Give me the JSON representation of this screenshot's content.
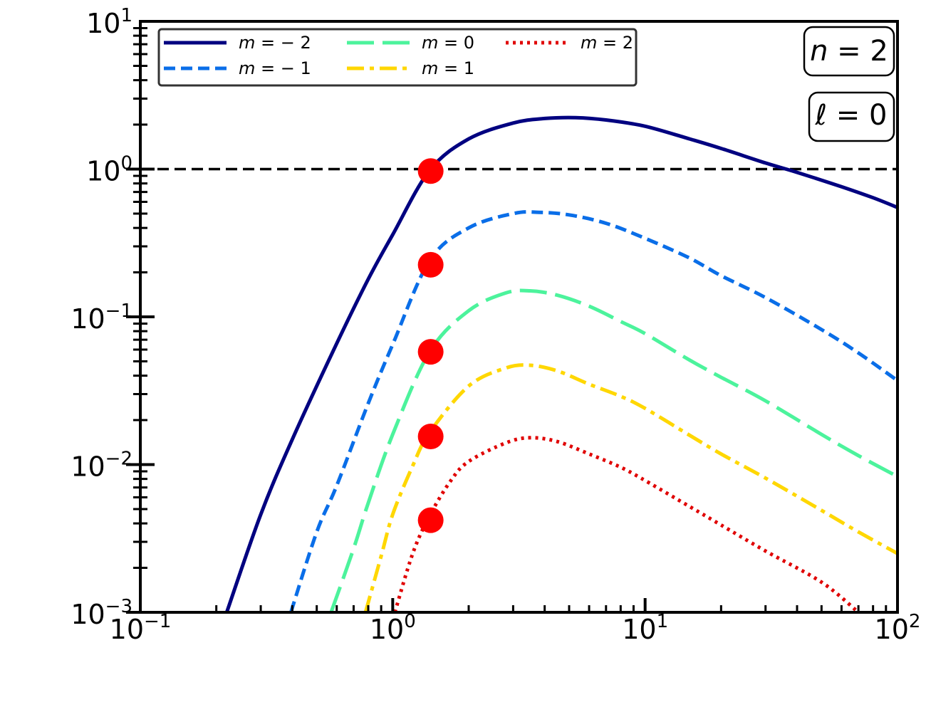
{
  "chart_data": {
    "type": "line",
    "title": "",
    "xlabel": "",
    "ylabel": "",
    "xscale": "log",
    "yscale": "log",
    "xlim": [
      0.1,
      100
    ],
    "ylim": [
      0.001,
      10
    ],
    "x_ticks": [
      {
        "base": "10",
        "exp": "−1"
      },
      {
        "base": "10",
        "exp": "0"
      },
      {
        "base": "10",
        "exp": "1"
      },
      {
        "base": "10",
        "exp": "2"
      }
    ],
    "y_ticks": [
      {
        "base": "10",
        "exp": "−3"
      },
      {
        "base": "10",
        "exp": "−2"
      },
      {
        "base": "10",
        "exp": "−1"
      },
      {
        "base": "10",
        "exp": "0"
      },
      {
        "base": "10",
        "exp": "1"
      }
    ],
    "grid": false,
    "legend_position": "top-left",
    "reference_line": {
      "y": 1.0,
      "style": "dashed",
      "color": "#000000"
    },
    "annotations": [
      {
        "var": "n",
        "op": " = ",
        "val": "2"
      },
      {
        "var": "ℓ",
        "op": " = ",
        "val": "0"
      }
    ],
    "series": [
      {
        "name": {
          "var": "m",
          "op": " = ",
          "val": "− 2"
        },
        "color": "#000080",
        "dash": "solid",
        "x": [
          0.22,
          0.3,
          0.4,
          0.6,
          0.8,
          1.0,
          1.4,
          2.0,
          3.0,
          4.0,
          5.3,
          7.0,
          10,
          15,
          20,
          30,
          40,
          60,
          80,
          100
        ],
        "y": [
          0.001,
          0.0046,
          0.0148,
          0.066,
          0.18,
          0.36,
          0.98,
          1.6,
          2.05,
          2.2,
          2.23,
          2.15,
          1.95,
          1.6,
          1.38,
          1.1,
          0.95,
          0.76,
          0.64,
          0.55
        ]
      },
      {
        "name": {
          "var": "m",
          "op": " = ",
          "val": "− 1"
        },
        "color": "#0a6ee8",
        "dash": "dashed",
        "x": [
          0.395,
          0.5,
          0.6,
          0.8,
          1.0,
          1.4,
          2.0,
          3.0,
          3.8,
          5.0,
          7.0,
          10,
          15,
          20,
          30,
          50,
          70,
          100
        ],
        "y": [
          0.001,
          0.0035,
          0.0072,
          0.026,
          0.065,
          0.24,
          0.4,
          0.5,
          0.51,
          0.49,
          0.43,
          0.34,
          0.25,
          0.19,
          0.135,
          0.082,
          0.057,
          0.037
        ]
      },
      {
        "name": {
          "var": "m",
          "op": " = ",
          "val": "0"
        },
        "color": "#4cf39c",
        "dash": "longdash",
        "x": [
          0.57,
          0.7,
          0.8,
          1.0,
          1.4,
          2.0,
          2.8,
          3.5,
          4.5,
          6.0,
          8.0,
          10,
          15,
          20,
          30,
          50,
          70,
          100
        ],
        "y": [
          0.001,
          0.0027,
          0.0055,
          0.016,
          0.058,
          0.11,
          0.145,
          0.15,
          0.14,
          0.118,
          0.093,
          0.077,
          0.051,
          0.039,
          0.027,
          0.016,
          0.0115,
          0.0083
        ]
      },
      {
        "name": {
          "var": "m",
          "op": " = ",
          "val": "1"
        },
        "color": "#ffd700",
        "dash": "dashdot",
        "x": [
          0.78,
          0.9,
          1.0,
          1.2,
          1.4,
          2.0,
          2.8,
          3.5,
          4.5,
          6.0,
          8.0,
          10,
          15,
          20,
          30,
          50,
          70,
          100
        ],
        "y": [
          0.001,
          0.0024,
          0.0046,
          0.0098,
          0.0165,
          0.034,
          0.045,
          0.047,
          0.043,
          0.035,
          0.029,
          0.024,
          0.0158,
          0.0118,
          0.0081,
          0.0049,
          0.0035,
          0.0025
        ]
      },
      {
        "name": {
          "var": "m",
          "op": " = ",
          "val": "2"
        },
        "color": "#e00000",
        "dash": "dotted",
        "x": [
          1.02,
          1.2,
          1.4,
          1.7,
          2.0,
          2.8,
          3.5,
          4.5,
          6.0,
          8.0,
          10,
          15,
          20,
          30,
          50,
          70
        ],
        "y": [
          0.001,
          0.0025,
          0.0045,
          0.0078,
          0.0105,
          0.014,
          0.0152,
          0.0143,
          0.0118,
          0.0096,
          0.0078,
          0.0052,
          0.0039,
          0.0026,
          0.0016,
          0.001
        ]
      }
    ],
    "markers": {
      "color": "#ff0000",
      "x": 1.414,
      "y": [
        0.97,
        0.225,
        0.058,
        0.0155,
        0.0042
      ]
    }
  }
}
